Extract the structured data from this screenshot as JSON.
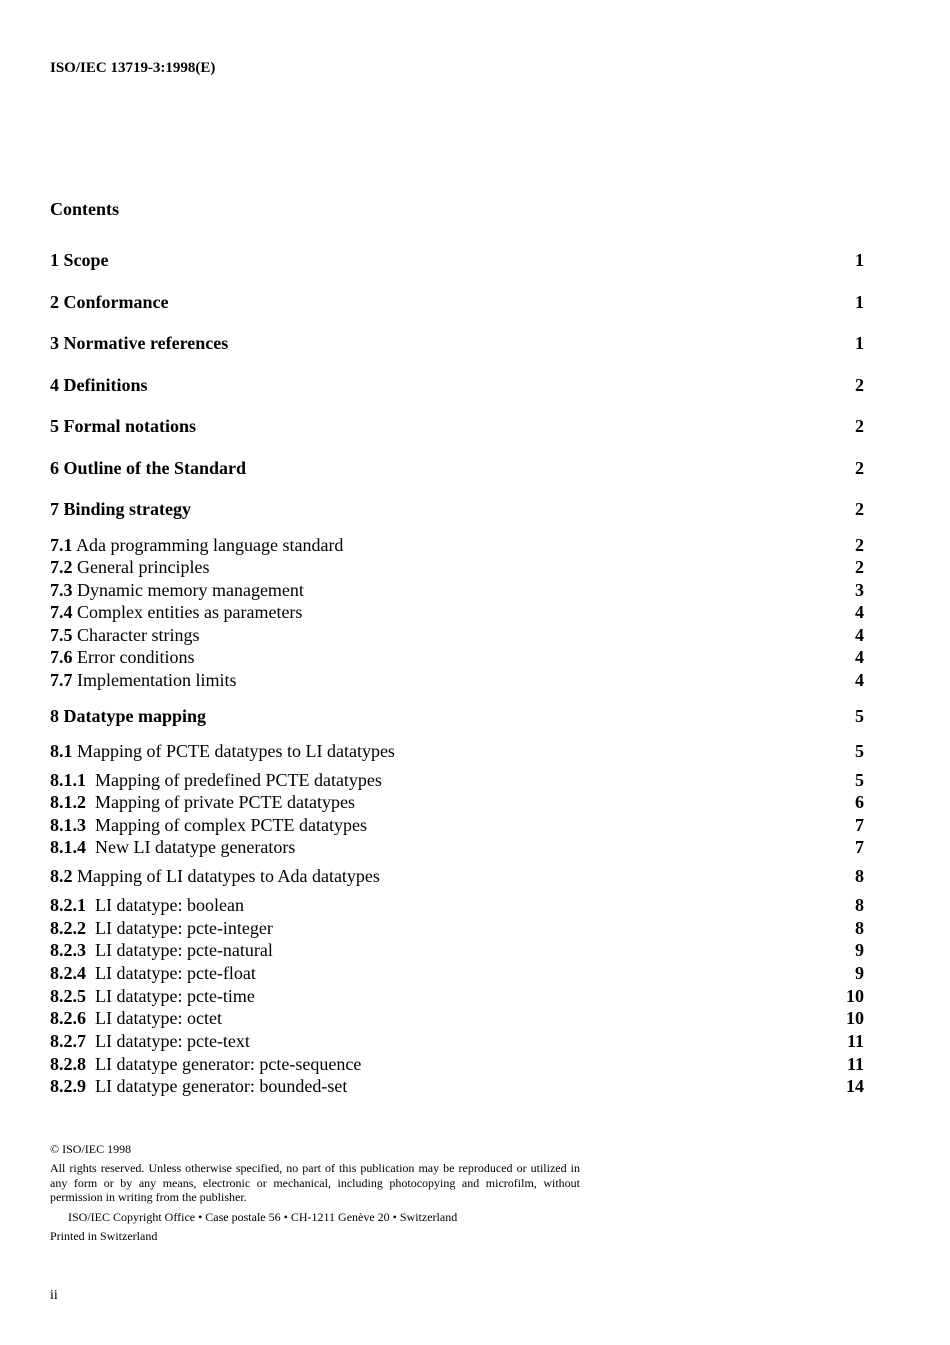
{
  "header": {
    "doc_id": "ISO/IEC 13719-3:1998(E)"
  },
  "contents_title": "Contents",
  "toc": [
    {
      "level": "major",
      "number": "1",
      "title": "Scope",
      "page": "1"
    },
    {
      "level": "major",
      "number": "2",
      "title": "Conformance",
      "page": "1"
    },
    {
      "level": "major",
      "number": "3",
      "title": "Normative references",
      "page": "1"
    },
    {
      "level": "major",
      "number": "4",
      "title": "Definitions",
      "page": "2"
    },
    {
      "level": "major",
      "number": "5",
      "title": "Formal notations",
      "page": "2"
    },
    {
      "level": "major",
      "number": "6",
      "title": "Outline of the Standard",
      "page": "2"
    },
    {
      "level": "major",
      "number": "7",
      "title": "Binding strategy",
      "page": "2"
    },
    {
      "level": "minor",
      "number": "7.1",
      "title": "Ada programming language standard",
      "page": "2"
    },
    {
      "level": "minor",
      "number": "7.2",
      "title": "General principles",
      "page": "2"
    },
    {
      "level": "minor",
      "number": "7.3",
      "title": "Dynamic memory management",
      "page": "3"
    },
    {
      "level": "minor",
      "number": "7.4",
      "title": "Complex entities as parameters",
      "page": "4"
    },
    {
      "level": "minor",
      "number": "7.5",
      "title": "Character strings",
      "page": "4"
    },
    {
      "level": "minor",
      "number": "7.6",
      "title": "Error conditions",
      "page": "4"
    },
    {
      "level": "minor",
      "number": "7.7",
      "title": "Implementation limits",
      "page": "4"
    },
    {
      "level": "major",
      "number": "8",
      "title": "Datatype mapping",
      "page": "5"
    },
    {
      "level": "minor",
      "number": "8.1",
      "title": "Mapping of PCTE datatypes to LI datatypes",
      "page": "5"
    },
    {
      "level": "sub",
      "number": "8.1.1",
      "title": "Mapping of predefined PCTE datatypes",
      "page": "5"
    },
    {
      "level": "sub",
      "number": "8.1.2",
      "title": "Mapping of private PCTE datatypes",
      "page": "6"
    },
    {
      "level": "sub",
      "number": "8.1.3",
      "title": "Mapping of complex PCTE datatypes",
      "page": "7"
    },
    {
      "level": "sub",
      "number": "8.1.4",
      "title": "New LI datatype generators",
      "page": "7"
    },
    {
      "level": "minor",
      "number": "8.2",
      "title": "Mapping of LI datatypes to Ada datatypes",
      "page": "8"
    },
    {
      "level": "sub",
      "number": "8.2.1",
      "title": "LI datatype: boolean",
      "page": "8"
    },
    {
      "level": "sub",
      "number": "8.2.2",
      "title": "LI datatype: pcte-integer",
      "page": "8"
    },
    {
      "level": "sub",
      "number": "8.2.3",
      "title": "LI datatype: pcte-natural",
      "page": "9"
    },
    {
      "level": "sub",
      "number": "8.2.4",
      "title": "LI datatype: pcte-float",
      "page": "9"
    },
    {
      "level": "sub",
      "number": "8.2.5",
      "title": "LI datatype: pcte-time",
      "page": "10"
    },
    {
      "level": "sub",
      "number": "8.2.6",
      "title": "LI datatype: octet",
      "page": "10"
    },
    {
      "level": "sub",
      "number": "8.2.7",
      "title": "LI datatype: pcte-text",
      "page": "11"
    },
    {
      "level": "sub",
      "number": "8.2.8",
      "title": "LI datatype generator: pcte-sequence",
      "page": "11"
    },
    {
      "level": "sub",
      "number": "8.2.9",
      "title": "LI datatype generator: bounded-set",
      "page": "14"
    }
  ],
  "footer": {
    "copyright": "©  ISO/IEC 1998",
    "rights": "All rights reserved. Unless otherwise specified, no part of this publication may be reproduced or utilized in any form or by any means, electronic or mechanical, including photocopying and microfilm, without permission in writing from the publisher.",
    "address": "ISO/IEC Copyright Office • Case postale 56 • CH-1211 Genève 20 • Switzerland",
    "printed": "Printed in Switzerland",
    "page_number": "ii"
  }
}
